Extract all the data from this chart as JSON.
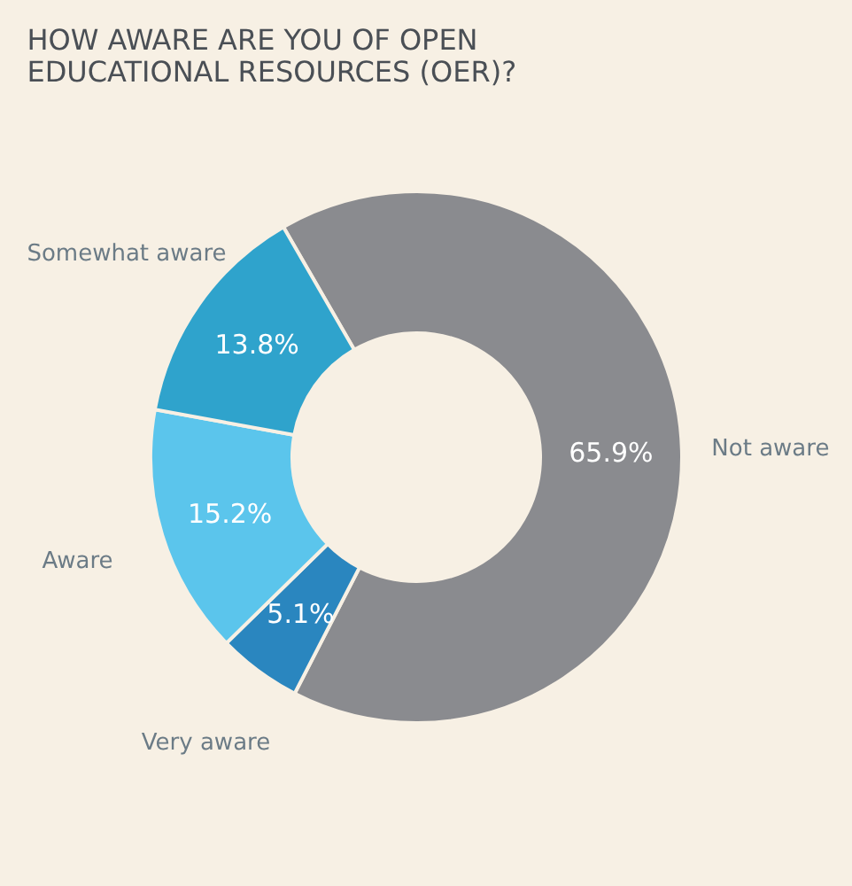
{
  "chart_data": {
    "type": "donut",
    "title": "HOW AWARE ARE YOU OF OPEN EDUCATIONAL RESOURCES (OER)?",
    "categories": [
      "Not aware",
      "Very aware",
      "Aware",
      "Somewhat aware"
    ],
    "values": [
      65.9,
      5.1,
      15.2,
      13.8
    ],
    "value_labels": [
      "65.9%",
      "5.1%",
      "15.2%",
      "13.8%"
    ],
    "colors": [
      "#8a8b8f",
      "#2a86bf",
      "#5bc5ec",
      "#2fa3cc"
    ]
  }
}
